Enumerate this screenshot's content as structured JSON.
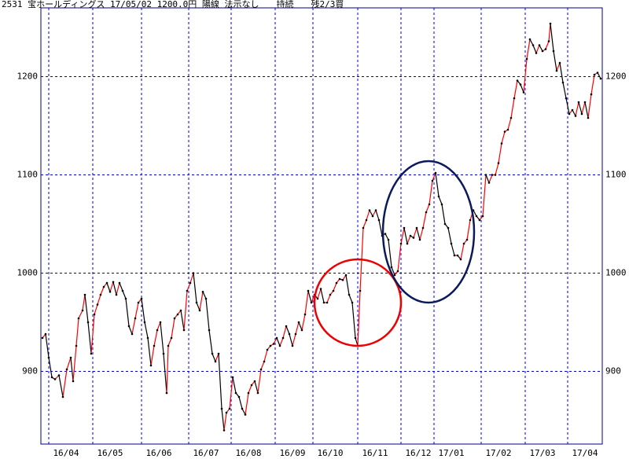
{
  "chart_data": {
    "type": "line",
    "title": "2531 宝ホールディングス 17/05/02 1200.0円 陽線 法示なし　　持続　　残2/3買",
    "x": [
      2,
      6,
      10,
      14,
      18,
      23,
      28,
      33,
      38,
      41,
      45,
      48,
      53,
      56,
      60,
      64,
      68,
      72,
      76,
      80,
      84,
      88,
      92,
      96,
      100,
      104,
      108,
      112,
      116,
      120,
      124,
      128,
      132,
      136,
      140,
      144,
      148,
      152,
      156,
      160,
      162,
      166,
      170,
      174,
      178,
      182,
      186,
      190,
      194,
      198,
      202,
      206,
      210,
      214,
      218,
      222,
      226,
      230,
      233,
      236,
      240,
      244,
      248,
      252,
      256,
      260,
      264,
      268,
      272,
      276,
      280,
      284,
      288,
      292,
      296,
      300,
      304,
      308,
      312,
      316,
      320,
      324,
      328,
      332,
      336,
      340,
      344,
      348,
      352,
      356,
      360,
      364,
      368,
      372,
      376,
      380,
      384,
      388,
      392,
      396,
      400,
      403,
      406,
      410,
      414,
      418,
      422,
      426,
      430,
      434,
      438,
      442,
      446,
      450,
      454,
      458,
      462,
      466,
      470,
      474,
      478,
      482,
      486,
      490,
      494,
      498,
      502,
      506,
      510,
      514,
      518,
      522,
      526,
      530,
      534,
      538,
      542,
      546,
      550,
      554,
      558,
      562,
      566,
      570,
      574,
      578,
      582,
      586,
      590,
      594,
      598,
      602,
      606,
      610,
      614,
      618,
      622,
      626,
      630,
      634,
      638,
      642,
      646,
      648,
      652,
      656,
      660,
      664,
      668,
      672,
      676,
      680,
      684,
      688,
      692,
      696,
      700,
      704,
      708,
      712
    ],
    "values": [
      934,
      938,
      914,
      894,
      892,
      896,
      874,
      902,
      914,
      890,
      926,
      954,
      962,
      978,
      950,
      918,
      958,
      968,
      978,
      986,
      990,
      981,
      991,
      978,
      990,
      982,
      974,
      946,
      938,
      954,
      970,
      974,
      950,
      934,
      906,
      926,
      942,
      950,
      918,
      878,
      926,
      934,
      954,
      958,
      962,
      942,
      982,
      990,
      1000,
      970,
      962,
      981,
      974,
      942,
      918,
      910,
      918,
      862,
      840,
      858,
      862,
      894,
      878,
      874,
      862,
      856,
      878,
      886,
      890,
      878,
      902,
      910,
      922,
      926,
      928,
      934,
      926,
      934,
      946,
      938,
      926,
      938,
      950,
      942,
      958,
      982,
      970,
      978,
      974,
      984,
      970,
      970,
      978,
      982,
      990,
      994,
      993,
      998,
      978,
      970,
      934,
      926,
      982,
      1046,
      1054,
      1064,
      1058,
      1064,
      1054,
      1038,
      1040,
      1034,
      1006,
      998,
      1002,
      1030,
      1046,
      1030,
      1038,
      1036,
      1046,
      1034,
      1046,
      1062,
      1070,
      1094,
      1102,
      1078,
      1070,
      1050,
      1046,
      1030,
      1018,
      1018,
      1014,
      1030,
      1034,
      1054,
      1064,
      1058,
      1054,
      1058,
      1100,
      1092,
      1100,
      1100,
      1112,
      1132,
      1144,
      1146,
      1158,
      1178,
      1196,
      1192,
      1184,
      1218,
      1238,
      1232,
      1224,
      1232,
      1226,
      1228,
      1236,
      1254,
      1226,
      1206,
      1214,
      1194,
      1178,
      1162,
      1166,
      1160,
      1174,
      1162,
      1174,
      1158,
      1182,
      1202,
      1204,
      1198
    ],
    "up_color": "#ff0000",
    "down_color": "#000000",
    "grid_color": "#0000cc",
    "xlim": [
      0,
      714
    ],
    "xticks": [
      {
        "value": 10,
        "label": "16/04"
      },
      {
        "value": 66,
        "label": "16/05"
      },
      {
        "value": 128,
        "label": "16/06"
      },
      {
        "value": 188,
        "label": "16/07"
      },
      {
        "value": 242,
        "label": "16/08"
      },
      {
        "value": 298,
        "label": "16/09"
      },
      {
        "value": 346,
        "label": "16/10"
      },
      {
        "value": 403,
        "label": "16/11"
      },
      {
        "value": 458,
        "label": "16/12"
      },
      {
        "value": 500,
        "label": "17/01"
      },
      {
        "value": 560,
        "label": "17/02"
      },
      {
        "value": 616,
        "label": "17/03"
      },
      {
        "value": 670,
        "label": "17/04"
      }
    ],
    "ylim": [
      826,
      1270
    ],
    "yticks": [
      900,
      1000,
      1100,
      1200
    ],
    "grid": true
  }
}
